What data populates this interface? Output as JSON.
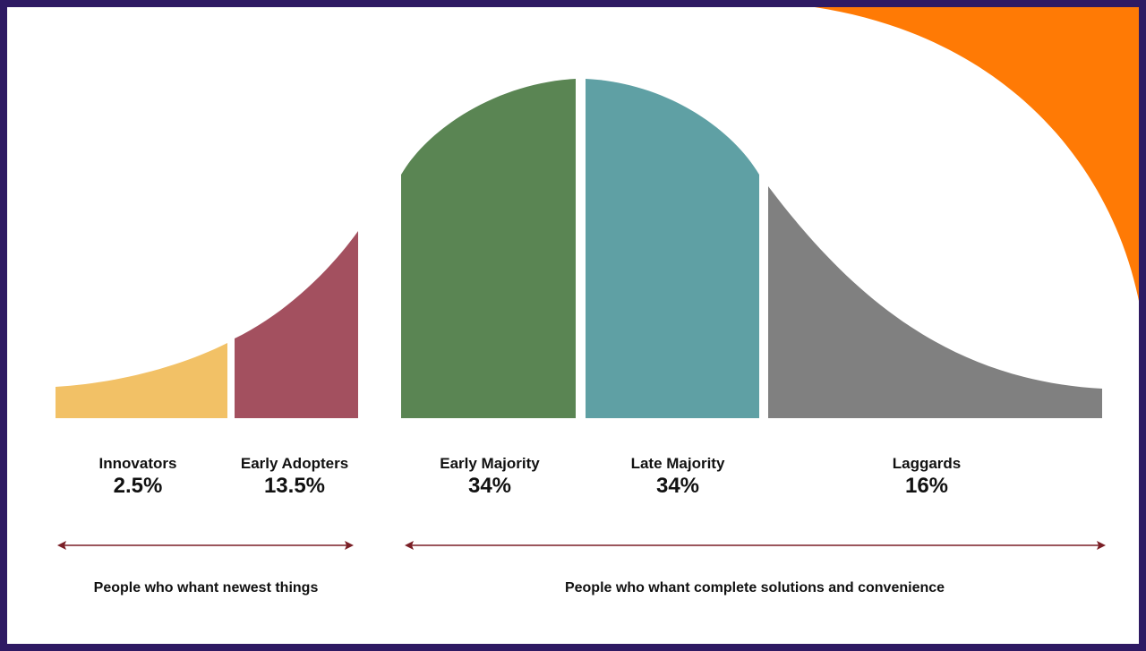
{
  "segments": [
    {
      "name": "Innovators",
      "percent": "2.5%",
      "color": "#f2c166"
    },
    {
      "name": "Early Adopters",
      "percent": "13.5%",
      "color": "#a3505f"
    },
    {
      "name": "Early Majority",
      "percent": "34%",
      "color": "#5a8553"
    },
    {
      "name": "Late Majority",
      "percent": "34%",
      "color": "#5fa0a4"
    },
    {
      "name": "Laggards",
      "percent": "16%",
      "color": "#808080"
    }
  ],
  "groups": [
    {
      "caption": "People who whant newest things",
      "covers": [
        "Innovators",
        "Early Adopters"
      ]
    },
    {
      "caption": "People who whant complete solutions and convenience",
      "covers": [
        "Early Majority",
        "Late Majority",
        "Laggards"
      ]
    }
  ],
  "colors": {
    "frame": "#2e1a63",
    "corner_accent": "#ff7a05",
    "arrow": "#7a1f26"
  }
}
